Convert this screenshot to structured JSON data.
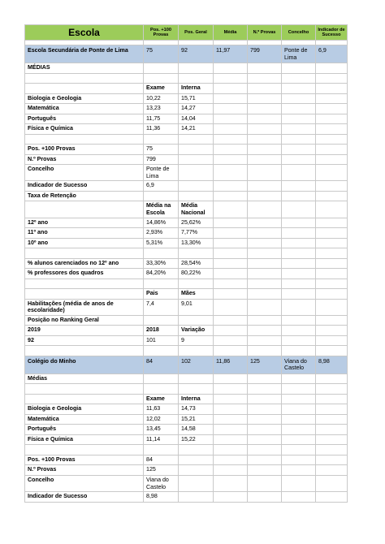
{
  "header": {
    "escola": "Escola",
    "pos100": "Pos. +100 Provas",
    "posgeral": "Pos. Geral",
    "media": "Média",
    "nprovas": "N.º Provas",
    "concelho": "Concelho",
    "indicador": "Indicador de Sucesso"
  },
  "school1": {
    "summary": [
      "Escola Secundária de Ponte de Lima",
      "75",
      "92",
      "11,97",
      "799",
      "Ponte de Lima",
      "6,9"
    ],
    "medias_title": "MÉDIAS",
    "exams_headers": [
      "Exame",
      "Interna"
    ],
    "exams": [
      {
        "name": "Biologia e Geologia",
        "exame": "10,22",
        "interna": "15,71"
      },
      {
        "name": "Matemática",
        "exame": "13,23",
        "interna": "14,27"
      },
      {
        "name": "Português",
        "exame": "11,75",
        "interna": "14,04"
      },
      {
        "name": "Física e Química",
        "exame": "11,36",
        "interna": "14,21"
      }
    ],
    "info": [
      {
        "label": "Pos. +100 Provas",
        "value": "75"
      },
      {
        "label": "N.º Provas",
        "value": "799"
      },
      {
        "label": "Concelho",
        "value": "Ponte de Lima"
      },
      {
        "label": "Indicador de Sucesso",
        "value": "6,9"
      }
    ],
    "retention_title": "Taxa de Retenção",
    "retention_headers": [
      "Média na Escola",
      "Média Nacional"
    ],
    "retention": [
      {
        "label": "12º ano",
        "escola": "14,86%",
        "nacional": "25,62%"
      },
      {
        "label": "11º ano",
        "escola": "2,93%",
        "nacional": "7,77%"
      },
      {
        "label": "10º ano",
        "escola": "5,31%",
        "nacional": "13,30%"
      }
    ],
    "extra": [
      {
        "label": "% alunos carenciados no 12º ano",
        "escola": "33,30%",
        "nacional": "28,54%"
      },
      {
        "label": "% professores dos quadros",
        "escola": "84,20%",
        "nacional": "80,22%"
      }
    ],
    "parents_headers": [
      "Pais",
      "Mães"
    ],
    "parents_label": "Habilitações (média de anos de escolaridade)",
    "parents_pais": "7,4",
    "parents_maes": "9,01",
    "ranking_title": "Posição no Ranking Geral",
    "ranking_headers": [
      "2019",
      "2018",
      "Variação"
    ],
    "ranking_values": [
      "92",
      "101",
      "9"
    ]
  },
  "school2": {
    "summary": [
      "Colégio do Minho",
      "84",
      "102",
      "11,86",
      "125",
      "Viana do Castelo",
      "8,98"
    ],
    "medias_title": "Médias",
    "exams_headers": [
      "Exame",
      "Interna"
    ],
    "exams": [
      {
        "name": "Biologia e Geologia",
        "exame": "11,63",
        "interna": "14,73"
      },
      {
        "name": "Matemática",
        "exame": "12,02",
        "interna": "15,21"
      },
      {
        "name": "Português",
        "exame": "13,45",
        "interna": "14,58"
      },
      {
        "name": "Física e Química",
        "exame": "11,14",
        "interna": "15,22"
      }
    ],
    "info": [
      {
        "label": "Pos. +100 Provas",
        "value": "84"
      },
      {
        "label": "N.º Provas",
        "value": "125"
      },
      {
        "label": "Concelho",
        "value": "Viana do Castelo"
      },
      {
        "label": "Indicador de Sucesso",
        "value": "8,98"
      }
    ]
  }
}
